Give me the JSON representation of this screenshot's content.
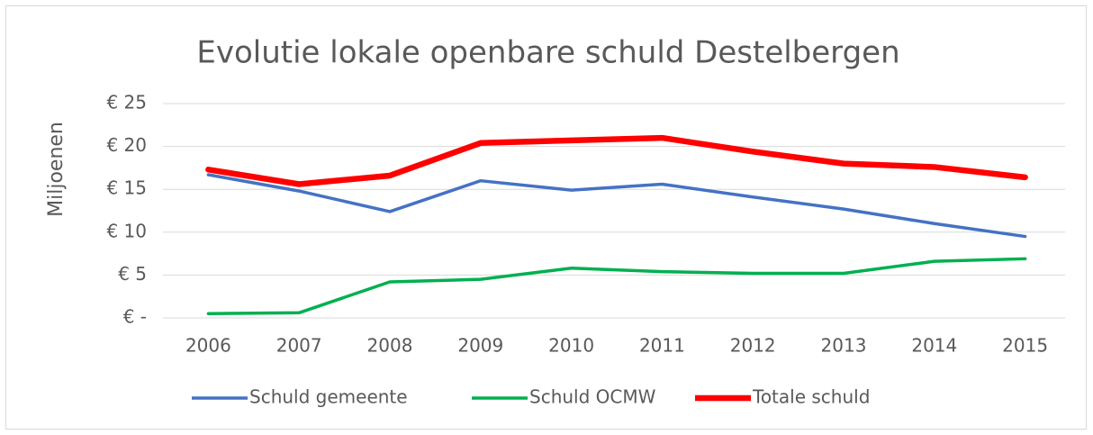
{
  "chart_data": {
    "type": "line",
    "title": "Evolutie lokale openbare schuld Destelbergen",
    "y_label": "Miljoenen",
    "categories": [
      "2006",
      "2007",
      "2008",
      "2009",
      "2010",
      "2011",
      "2012",
      "2013",
      "2014",
      "2015"
    ],
    "series": [
      {
        "name": "Schuld gemeente",
        "color": "#4472c4",
        "values": [
          16.7,
          14.8,
          12.4,
          16.0,
          14.9,
          15.6,
          14.1,
          12.7,
          11.0,
          9.5
        ]
      },
      {
        "name": "Schuld OCMW",
        "color": "#00b050",
        "values": [
          0.5,
          0.6,
          4.2,
          4.5,
          5.8,
          5.4,
          5.2,
          5.2,
          6.6,
          6.9
        ]
      },
      {
        "name": "Totale schuld",
        "color": "#ff0000",
        "values": [
          17.3,
          15.6,
          16.6,
          20.4,
          20.7,
          21.0,
          19.4,
          18.0,
          17.6,
          16.4
        ]
      }
    ],
    "ylim": [
      0,
      25
    ],
    "yticks": [
      {
        "value": 0,
        "label": "€ -"
      },
      {
        "value": 5,
        "label": "€ 5"
      },
      {
        "value": 10,
        "label": "€ 10"
      },
      {
        "value": 15,
        "label": "€ 15"
      },
      {
        "value": 20,
        "label": "€ 20"
      },
      {
        "value": 25,
        "label": "€ 25"
      }
    ],
    "grid": true,
    "legend": "bottom"
  }
}
